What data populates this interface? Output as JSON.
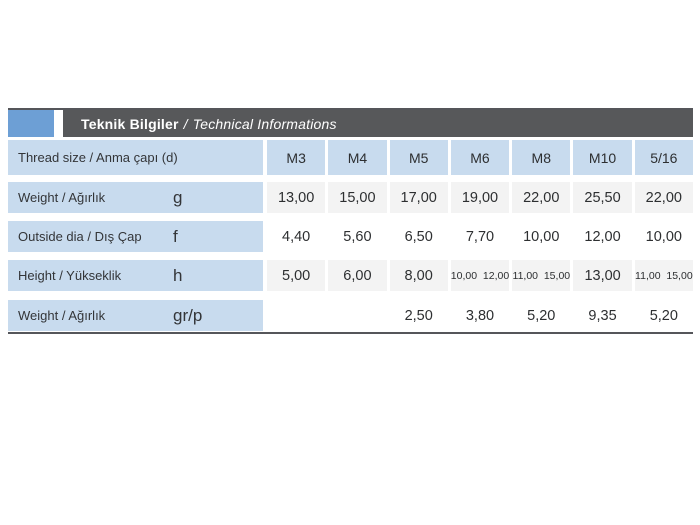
{
  "header": {
    "title_bold": "Teknik Bilgiler",
    "title_separator": "/",
    "title_italic": "Technical Informations"
  },
  "table": {
    "thread_row_label": "Thread size / Anma çapı (d)",
    "columns": [
      "M3",
      "M4",
      "M5",
      "M6",
      "M8",
      "M10",
      "5/16"
    ],
    "rows": [
      {
        "label": "Weight / Ağırlık",
        "unit": "g",
        "values": [
          "13,00",
          "15,00",
          "17,00",
          "19,00",
          "22,00",
          "25,50",
          "22,00"
        ]
      },
      {
        "label": "Outside dia / Dış Çap",
        "unit": "f",
        "values": [
          "4,40",
          "5,60",
          "6,50",
          "7,70",
          "10,00",
          "12,00",
          "10,00"
        ]
      },
      {
        "label": "Height / Yükseklik",
        "unit": "h",
        "values": [
          "5,00",
          "6,00",
          "8,00",
          "10,00  12,00",
          "11,00  15,00",
          "13,00",
          "11,00  15,00"
        ]
      },
      {
        "label": "Weight / Ağırlık",
        "unit": "gr/p",
        "values": [
          "",
          "",
          "2,50",
          "3,80",
          "5,20",
          "9,35",
          "5,20"
        ]
      }
    ]
  },
  "colors": {
    "accent_blue": "#6d9fd5",
    "title_bar_gray": "#57585a",
    "header_cell_blue": "#c8dbee",
    "shaded_cell_gray": "#f3f3f3",
    "rule_dark": "#55565a"
  }
}
